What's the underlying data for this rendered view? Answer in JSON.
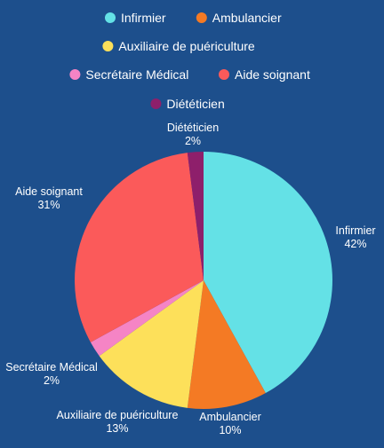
{
  "chart_data": {
    "type": "pie",
    "categories": [
      "Infirmier",
      "Ambulancier",
      "Auxiliaire de puériculture",
      "Secrétaire Médical",
      "Aide soignant",
      "Diététicien"
    ],
    "values": [
      42,
      10,
      13,
      2,
      31,
      2
    ],
    "value_labels": [
      "42%",
      "10%",
      "13%",
      "2%",
      "31%",
      "2%"
    ],
    "colors": [
      "#64e1e6",
      "#f47a24",
      "#fde05a",
      "#f584c5",
      "#fb5a5a",
      "#8e1f6b"
    ],
    "legend_position": "top",
    "start_angle_deg": 0,
    "direction": "clockwise"
  },
  "colors": {
    "background": "#1d4f8c",
    "text": "#ffffff"
  }
}
